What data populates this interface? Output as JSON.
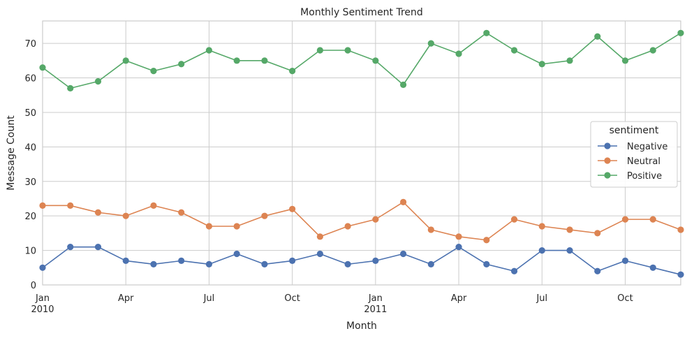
{
  "chart_data": {
    "type": "line",
    "title": "Monthly Sentiment Trend",
    "xlabel": "Month",
    "ylabel": "Message Count",
    "x": [
      "2010-01",
      "2010-02",
      "2010-03",
      "2010-04",
      "2010-05",
      "2010-06",
      "2010-07",
      "2010-08",
      "2010-09",
      "2010-10",
      "2010-11",
      "2010-12",
      "2011-01",
      "2011-02",
      "2011-03",
      "2011-04",
      "2011-05",
      "2011-06",
      "2011-07",
      "2011-08",
      "2011-09",
      "2011-10",
      "2011-11",
      "2011-12"
    ],
    "x_ticks": [
      {
        "x": "2010-01",
        "label": "Jan",
        "year": "2010"
      },
      {
        "x": "2010-04",
        "label": "Apr",
        "year": ""
      },
      {
        "x": "2010-07",
        "label": "Jul",
        "year": ""
      },
      {
        "x": "2010-10",
        "label": "Oct",
        "year": ""
      },
      {
        "x": "2011-01",
        "label": "Jan",
        "year": "2011"
      },
      {
        "x": "2011-04",
        "label": "Apr",
        "year": ""
      },
      {
        "x": "2011-07",
        "label": "Jul",
        "year": ""
      },
      {
        "x": "2011-10",
        "label": "Oct",
        "year": ""
      }
    ],
    "y_ticks": [
      0,
      10,
      20,
      30,
      40,
      50,
      60,
      70
    ],
    "ylim": [
      0,
      76.5
    ],
    "grid": true,
    "legend": {
      "title": "sentiment",
      "placement": "center-right"
    },
    "series": [
      {
        "name": "Negative",
        "color": "#4c72b0",
        "values": [
          5,
          11,
          11,
          7,
          6,
          7,
          6,
          9,
          6,
          7,
          9,
          6,
          7,
          9,
          6,
          11,
          6,
          4,
          10,
          10,
          4,
          7,
          5,
          3
        ]
      },
      {
        "name": "Neutral",
        "color": "#dd8452",
        "values": [
          23,
          23,
          21,
          20,
          23,
          21,
          17,
          17,
          20,
          22,
          14,
          17,
          19,
          24,
          16,
          14,
          13,
          19,
          17,
          16,
          15,
          19,
          19,
          16
        ]
      },
      {
        "name": "Positive",
        "color": "#55a868",
        "values": [
          63,
          57,
          59,
          65,
          62,
          64,
          68,
          65,
          65,
          62,
          68,
          68,
          65,
          58,
          70,
          67,
          73,
          68,
          64,
          65,
          72,
          65,
          68,
          73
        ]
      }
    ]
  }
}
